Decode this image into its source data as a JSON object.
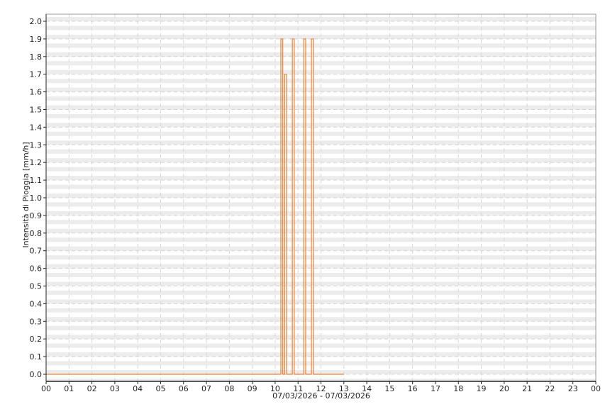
{
  "chart_data": {
    "type": "line",
    "step": true,
    "title": "",
    "xlabel": "07/03/2026 - 07/03/2026",
    "ylabel": "Intensità di Pioggia [mm/h]",
    "xlim": [
      "00:00",
      "24:00"
    ],
    "ylim": [
      0,
      2.0
    ],
    "x_ticks": [
      "00",
      "01",
      "02",
      "03",
      "04",
      "05",
      "06",
      "07",
      "08",
      "09",
      "10",
      "11",
      "12",
      "13",
      "14",
      "15",
      "16",
      "17",
      "18",
      "19",
      "20",
      "21",
      "22",
      "23",
      "00"
    ],
    "y_ticks": [
      "0.0",
      "0.1",
      "0.2",
      "0.3",
      "0.4",
      "0.5",
      "0.6",
      "0.7",
      "0.8",
      "0.9",
      "1.0",
      "1.1",
      "1.2",
      "1.3",
      "1.4",
      "1.5",
      "1.6",
      "1.7",
      "1.8",
      "1.9",
      "2.0"
    ],
    "grid": true,
    "line_color": "#f08030",
    "series": [
      {
        "points": [
          [
            "00:00",
            0.0
          ],
          [
            "10:15",
            1.9
          ],
          [
            "10:20",
            0.0
          ],
          [
            "10:25",
            1.7
          ],
          [
            "10:30",
            0.0
          ],
          [
            "10:45",
            1.9
          ],
          [
            "10:50",
            0.0
          ],
          [
            "11:15",
            1.9
          ],
          [
            "11:20",
            0.0
          ],
          [
            "11:35",
            1.9
          ],
          [
            "11:40",
            0.0
          ],
          [
            "13:00",
            0.0
          ]
        ]
      }
    ]
  }
}
